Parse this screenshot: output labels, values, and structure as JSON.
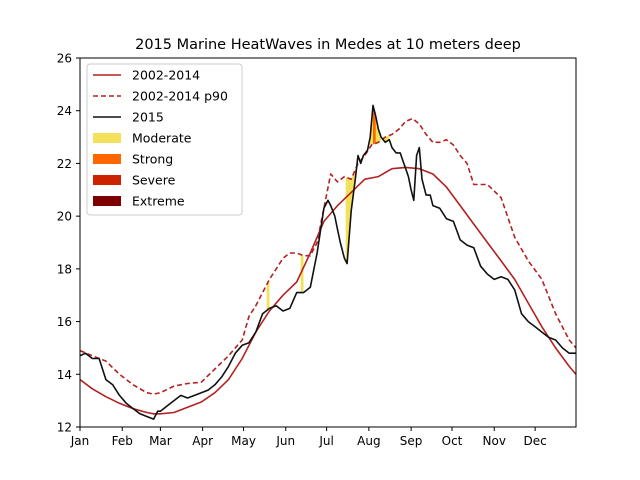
{
  "chart_data": {
    "type": "line",
    "title": "2015 Marine HeatWaves in Medes at 10 meters deep",
    "xlabel": "",
    "ylabel": "",
    "x_unit": "day of year",
    "xlim": [
      1,
      365
    ],
    "ylim": [
      12,
      26
    ],
    "yticks": [
      12,
      14,
      16,
      18,
      20,
      22,
      24,
      26
    ],
    "xticks": [
      {
        "label": "Jan",
        "day": 1
      },
      {
        "label": "Feb",
        "day": 32
      },
      {
        "label": "Mar",
        "day": 60
      },
      {
        "label": "Apr",
        "day": 91
      },
      {
        "label": "May",
        "day": 121
      },
      {
        "label": "Jun",
        "day": 152
      },
      {
        "label": "Jul",
        "day": 182
      },
      {
        "label": "Aug",
        "day": 213
      },
      {
        "label": "Sep",
        "day": 244
      },
      {
        "label": "Oct",
        "day": 274
      },
      {
        "label": "Nov",
        "day": 305
      },
      {
        "label": "Dec",
        "day": 335
      }
    ],
    "grid": false,
    "legend_position": "upper-left",
    "series": [
      {
        "name": "2002-2014",
        "style": "solid",
        "color": "#b22222",
        "x": [
          1,
          10,
          20,
          30,
          40,
          50,
          55,
          60,
          70,
          80,
          90,
          100,
          110,
          120,
          130,
          140,
          150,
          160,
          170,
          180,
          190,
          200,
          210,
          220,
          230,
          240,
          250,
          260,
          270,
          280,
          290,
          300,
          310,
          320,
          330,
          340,
          350,
          360,
          365
        ],
        "y": [
          13.8,
          13.45,
          13.15,
          12.9,
          12.7,
          12.55,
          12.5,
          12.5,
          12.55,
          12.75,
          12.95,
          13.3,
          13.8,
          14.6,
          15.6,
          16.4,
          17.0,
          17.5,
          18.6,
          19.8,
          20.4,
          20.9,
          21.4,
          21.5,
          21.8,
          21.85,
          21.8,
          21.6,
          21.1,
          20.4,
          19.7,
          19.0,
          18.3,
          17.6,
          16.7,
          15.8,
          15.0,
          14.3,
          14.0
        ]
      },
      {
        "name": "2002-2014 p90",
        "style": "dashed",
        "color": "#b22222",
        "x": [
          1,
          10,
          20,
          30,
          40,
          50,
          55,
          60,
          70,
          80,
          90,
          100,
          110,
          120,
          125,
          130,
          135,
          140,
          150,
          155,
          160,
          165,
          170,
          175,
          180,
          185,
          190,
          195,
          200,
          205,
          210,
          215,
          220,
          225,
          230,
          235,
          240,
          245,
          250,
          255,
          260,
          265,
          270,
          275,
          280,
          285,
          290,
          295,
          300,
          310,
          320,
          330,
          340,
          350,
          360,
          365
        ],
        "y": [
          14.9,
          14.7,
          14.5,
          14.0,
          13.6,
          13.3,
          13.25,
          13.3,
          13.55,
          13.65,
          13.7,
          14.2,
          14.7,
          15.3,
          16.2,
          16.6,
          17.1,
          17.6,
          18.4,
          18.6,
          18.6,
          18.5,
          18.5,
          19.0,
          20.3,
          21.6,
          21.3,
          21.5,
          21.4,
          22.0,
          22.3,
          22.7,
          22.8,
          23.0,
          23.1,
          23.3,
          23.6,
          23.7,
          23.5,
          23.1,
          22.8,
          22.8,
          22.9,
          22.7,
          22.3,
          22.0,
          21.2,
          21.2,
          21.2,
          20.7,
          19.2,
          18.3,
          17.6,
          16.3,
          15.3,
          15.0
        ]
      },
      {
        "name": "2015",
        "style": "solid",
        "color": "#111111",
        "x": [
          1,
          5,
          10,
          15,
          20,
          25,
          30,
          35,
          40,
          45,
          50,
          55,
          58,
          60,
          65,
          70,
          75,
          80,
          85,
          90,
          95,
          100,
          105,
          110,
          115,
          120,
          125,
          130,
          135,
          140,
          145,
          150,
          155,
          160,
          165,
          170,
          175,
          180,
          183,
          185,
          188,
          190,
          192,
          195,
          197,
          200,
          203,
          205,
          207,
          209,
          212,
          214,
          216,
          218,
          220,
          222,
          225,
          228,
          230,
          233,
          236,
          238,
          240,
          242,
          244,
          246,
          248,
          250,
          252,
          255,
          258,
          260,
          265,
          270,
          275,
          280,
          285,
          290,
          295,
          300,
          305,
          310,
          315,
          320,
          325,
          330,
          335,
          340,
          345,
          350,
          355,
          360,
          365
        ],
        "y": [
          14.7,
          14.8,
          14.6,
          14.6,
          13.8,
          13.6,
          13.2,
          12.9,
          12.7,
          12.5,
          12.4,
          12.3,
          12.6,
          12.6,
          12.8,
          13.0,
          13.2,
          13.1,
          13.2,
          13.3,
          13.4,
          13.6,
          13.9,
          14.3,
          14.8,
          15.1,
          15.2,
          15.6,
          16.3,
          16.5,
          16.6,
          16.4,
          16.5,
          17.1,
          17.1,
          17.3,
          18.6,
          20.3,
          20.6,
          20.4,
          20.0,
          19.5,
          19.0,
          18.4,
          18.2,
          20.2,
          21.4,
          22.3,
          22.0,
          22.3,
          22.5,
          23.0,
          24.2,
          23.8,
          23.3,
          23.0,
          22.8,
          22.9,
          22.6,
          22.4,
          22.4,
          22.1,
          21.8,
          21.5,
          21.0,
          20.6,
          22.3,
          22.6,
          21.4,
          20.8,
          20.8,
          20.4,
          20.3,
          19.9,
          19.8,
          19.1,
          18.9,
          18.8,
          18.1,
          17.8,
          17.6,
          17.7,
          17.6,
          17.2,
          16.3,
          16.0,
          15.8,
          15.6,
          15.4,
          15.3,
          15.0,
          14.8,
          14.8
        ]
      }
    ],
    "fills": [
      {
        "category": "Moderate",
        "color": "#f4e15a",
        "events": [
          [
            138,
            140
          ],
          [
            163,
            165
          ],
          [
            196,
            204
          ],
          [
            206,
            210
          ],
          [
            214,
            222
          ],
          [
            224,
            228
          ]
        ]
      },
      {
        "category": "Strong",
        "color": "#ff6600",
        "events": [
          [
            216,
            218
          ]
        ]
      },
      {
        "category": "Severe",
        "color": "#cc2200",
        "events": []
      },
      {
        "category": "Extreme",
        "color": "#7f0000",
        "events": []
      }
    ],
    "legend": [
      {
        "label": "2002-2014",
        "kind": "line",
        "color": "#b22222",
        "style": "solid"
      },
      {
        "label": "2002-2014 p90",
        "kind": "line",
        "color": "#b22222",
        "style": "dashed"
      },
      {
        "label": "2015",
        "kind": "line",
        "color": "#111111",
        "style": "solid"
      },
      {
        "label": "Moderate",
        "kind": "patch",
        "color": "#f4e15a"
      },
      {
        "label": "Strong",
        "kind": "patch",
        "color": "#ff6600"
      },
      {
        "label": "Severe",
        "kind": "patch",
        "color": "#cc2200"
      },
      {
        "label": "Extreme",
        "kind": "patch",
        "color": "#7f0000"
      }
    ]
  }
}
